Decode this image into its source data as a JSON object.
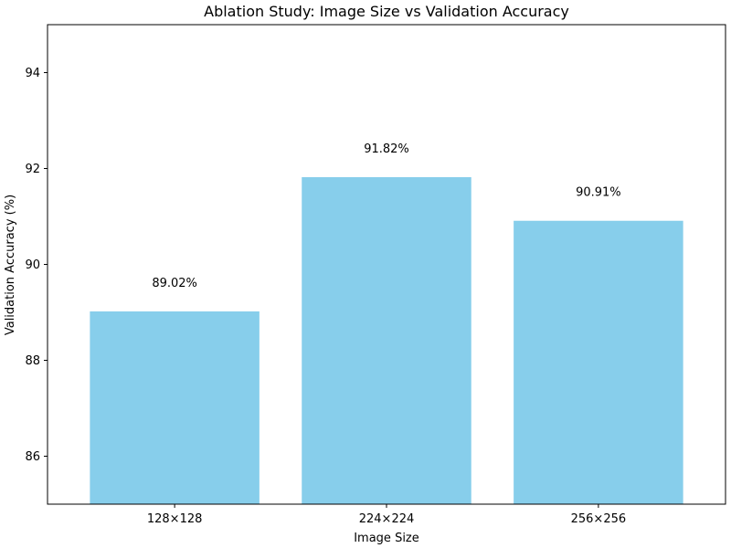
{
  "chart_data": {
    "type": "bar",
    "title": "Ablation Study: Image Size vs Validation Accuracy",
    "xlabel": "Image Size",
    "ylabel": "Validation Accuracy (%)",
    "categories": [
      "128×128",
      "224×224",
      "256×256"
    ],
    "values": [
      89.02,
      91.82,
      90.91
    ],
    "data_labels": [
      "89.02%",
      "91.82%",
      "90.91%"
    ],
    "ylim": [
      85,
      95
    ],
    "yticks": [
      86,
      88,
      90,
      92,
      94
    ],
    "bar_color": "#87CEEB",
    "grid": false,
    "legend": "none"
  }
}
